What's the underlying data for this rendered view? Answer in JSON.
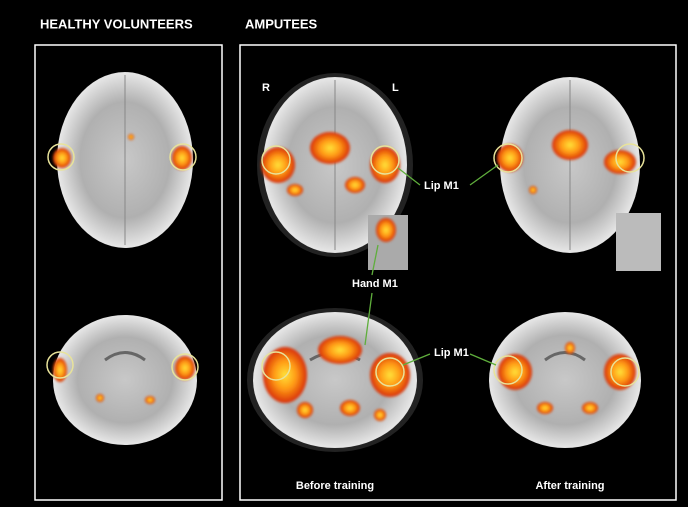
{
  "headings": {
    "left": "HEALTHY VOLUNTEERS",
    "right": "AMPUTEES"
  },
  "orientation": {
    "right_side": "R",
    "left_side": "L"
  },
  "annotations": {
    "lip_m1_axial": "Lip M1",
    "hand_m1": "Hand M1",
    "lip_m1_coronal": "Lip M1"
  },
  "conditions": {
    "before": "Before training",
    "after": "After training"
  }
}
